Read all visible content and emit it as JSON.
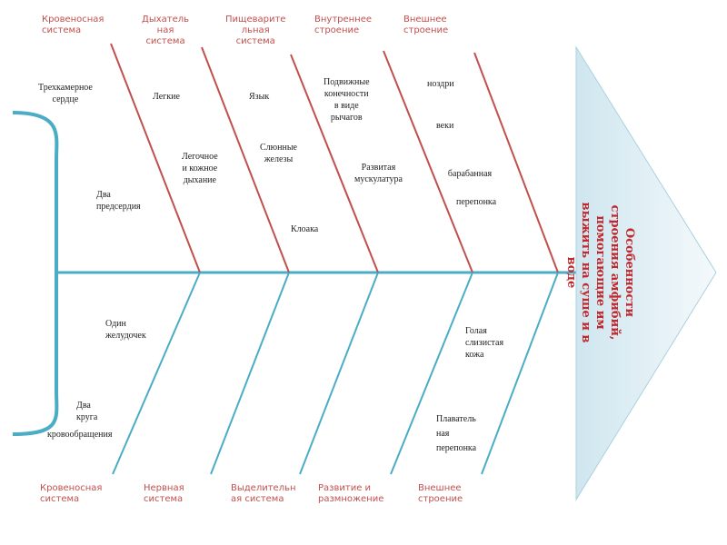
{
  "head": {
    "lines": [
      "Особенности",
      "строения амфибий,",
      "помогающие им",
      "выжить на суше и в",
      "воде"
    ]
  },
  "top_categories": [
    {
      "lines": [
        "Кровеносная",
        "система"
      ]
    },
    {
      "lines": [
        "Дыхатель",
        "ная",
        "система"
      ]
    },
    {
      "lines": [
        "Пищеварите",
        "льная",
        "система"
      ]
    },
    {
      "lines": [
        "Внутреннее",
        "строение"
      ]
    },
    {
      "lines": [
        "Внешнее",
        "строение"
      ]
    }
  ],
  "bottom_categories": [
    {
      "lines": [
        "Кровеносная",
        "система"
      ]
    },
    {
      "lines": [
        "Нервная",
        "система"
      ]
    },
    {
      "lines": [
        "Выделительн",
        "ая система"
      ]
    },
    {
      "lines": [
        "Развитие и",
        "размножение"
      ]
    },
    {
      "lines": [
        "Внешнее",
        "строение"
      ]
    }
  ],
  "items": [
    {
      "lines": [
        "Трехкамерное",
        "сердце"
      ]
    },
    {
      "lines": [
        "Два",
        "предсердия"
      ]
    },
    {
      "lines": [
        "Легкие"
      ]
    },
    {
      "lines": [
        "Легочное",
        "и кожное",
        "дыхание"
      ]
    },
    {
      "lines": [
        "Язык"
      ]
    },
    {
      "lines": [
        "Слюнные",
        "железы"
      ]
    },
    {
      "lines": [
        "Клоака"
      ]
    },
    {
      "lines": [
        "Подвижные",
        "конечности",
        "в виде",
        "рычагов"
      ]
    },
    {
      "lines": [
        "Развитая",
        "мускулатура"
      ]
    },
    {
      "lines": [
        "ноздри"
      ]
    },
    {
      "lines": [
        "веки"
      ]
    },
    {
      "lines": [
        "барабанная",
        "перепонка"
      ]
    },
    {
      "lines": [
        "Один",
        "желудочек"
      ]
    },
    {
      "lines": [
        "Два",
        "круга",
        "кровообращения"
      ]
    },
    {
      "lines": [
        "Голая",
        "слизистая",
        "кожа"
      ]
    },
    {
      "lines": [
        "Плаватель",
        "ная",
        "перепонка"
      ]
    }
  ],
  "colors": {
    "spine": "#4bacc6",
    "top_bones": "#c0504d",
    "bottom_bones": "#4bacc6",
    "category_text": "#c0504d",
    "head_text": "#c0282d"
  }
}
